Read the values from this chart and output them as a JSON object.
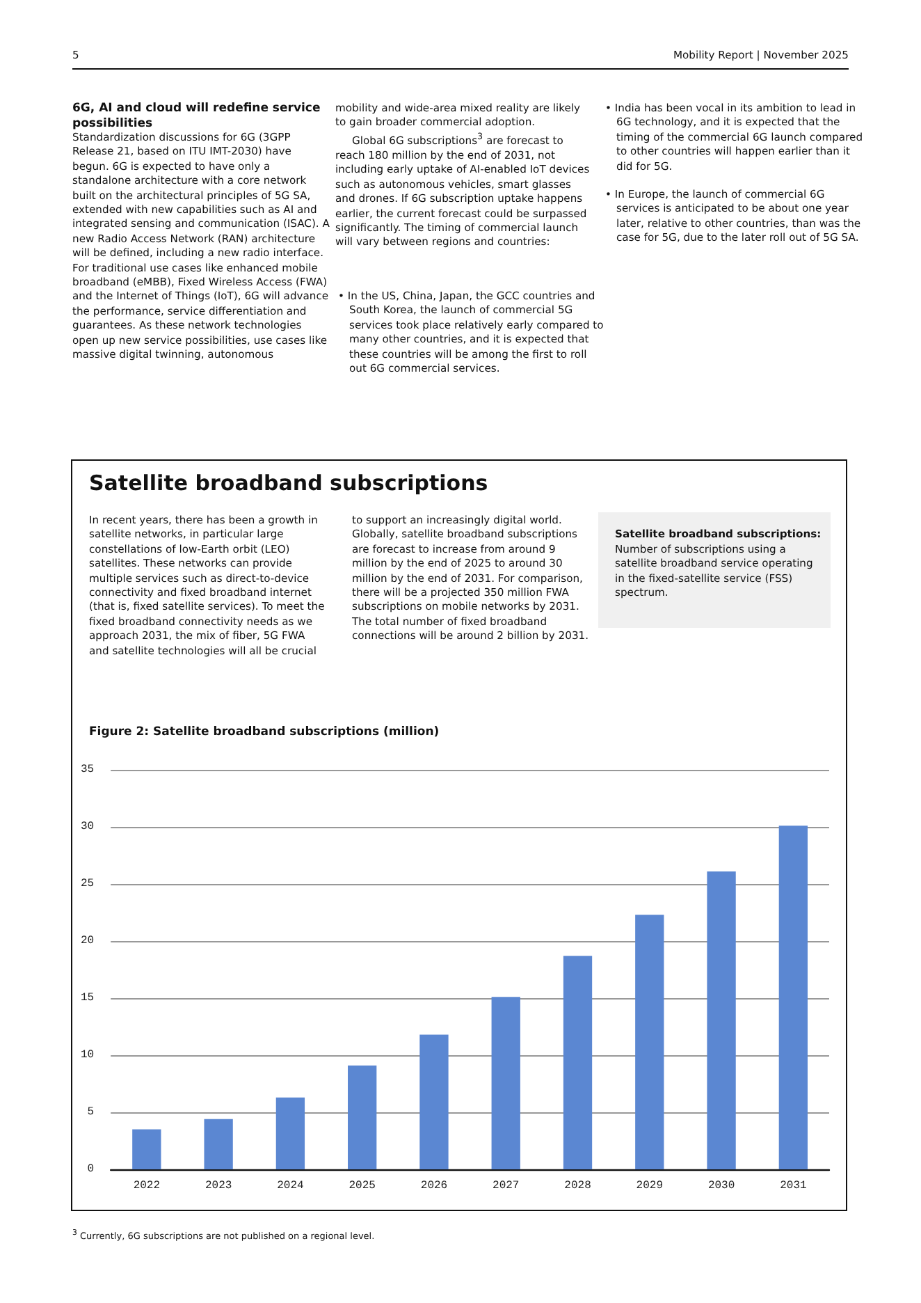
{
  "chart_data": {
    "type": "bar",
    "title": "Figure 2: Satellite broadband subscriptions (million)",
    "categories": [
      "2022",
      "2023",
      "2024",
      "2025",
      "2026",
      "2027",
      "2028",
      "2029",
      "2030",
      "2031"
    ],
    "values": [
      3.5,
      4.4,
      6.3,
      9.1,
      11.8,
      15.1,
      18.7,
      22.3,
      26.1,
      30.1
    ],
    "color": "#5b87d2",
    "ylim": [
      0,
      35
    ],
    "yticks": [
      0,
      5,
      10,
      15,
      20,
      25,
      30,
      35
    ],
    "grid": "y",
    "annotations": [
      "5",
      "Mobility Report | November 2025",
      "6G, AI and cloud will redefine service possibilities",
      "Standardization discussions for 6G (3GPP Release 21, based on ITU IMT-2030) have begun. 6G is expected to have only a standalone architecture with a core network built on the architectural principles of 5G SA, extended with new capabilities such as AI and integrated sensing and communication (ISAC). A new Radio Access Network (RAN) architecture will be defined, including a new radio interface. For traditional use cases like enhanced mobile broadband (eMBB), Fixed Wireless Access (FWA) and the Internet of Things (IoT), 6G will advance the performance, service differentiation and guarantees. As these network technologies open up new service possibilities, use cases like massive digital twinning, autonomous",
      "mobility and wide-area mixed reality are likely to gain broader commercial adoption.",
      "Global 6G subscriptions$^{3}$ are forecast to reach 180 million by the end of 2031, not including early uptake of AI-enabled IoT devices such as autonomous vehicles, smart glasses and drones. If 6G subscription uptake happens earlier, the current forecast could be surpassed significantly. The timing of commercial launch will vary between regions and countries:",
      "• In the US, China, Japan, the GCC countries and South Korea, the launch of commercial 5G services took place relatively early compared to many other countries, and it is expected that these countries will be among the first to roll out 6G commercial services.",
      "• India has been vocal in its ambition to lead in 6G technology, and it is expected that the timing of the commercial 6G launch compared to other countries will happen earlier than it did for 5G.",
      "• In Europe, the launch of commercial 6G services is anticipated to be about one year later, relative to other countries, than was the case for 5G, due to the later roll out of 5G SA.",
      "Satellite broadband subscriptions",
      "In recent years, there has been a growth in satellite networks, in particular large constellations of low-Earth orbit (LEO) satellites. These networks can provide multiple services such as direct-to-device connectivity and fixed broadband internet (that is, fixed satellite services). To meet the fixed broadband connectivity needs as we approach 2031, the mix of fiber, 5G FWA and satellite technologies will all be crucial to support an increasingly digital world. Globally, satellite broadband subscriptions are forecast to increase from around 9 million by the end of 2025 to around 30 million by the end of 2031. For comparison, there will be a projected 350 million FWA subscriptions on mobile networks by 2031. The total number of fixed broadband connections will be around 2 billion by 2031.",
      "Satellite broadband subscriptions:",
      "Number of subscriptions using a satellite broadband service operating in the fixed-satellite service (FSS) spectrum.",
      "$^{3}$ Currently, 6G subscriptions are not published on a regional level."
    ]
  }
}
